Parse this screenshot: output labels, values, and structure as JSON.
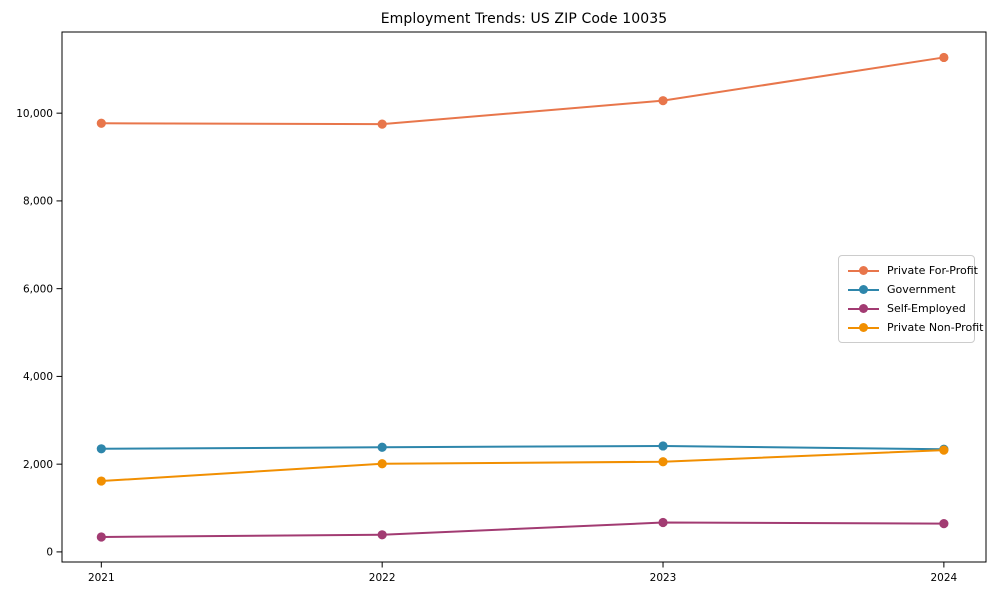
{
  "figure": {
    "background": "#ffffff",
    "spine_color": "#000000",
    "text_color": "#000000"
  },
  "chart_data": {
    "type": "line",
    "title": "Employment Trends: US ZIP Code 10035",
    "xlabel": "",
    "ylabel": "",
    "grid": false,
    "x_tick_labels": [
      "2021",
      "2022",
      "2023",
      "2024"
    ],
    "x_numeric": [
      2021,
      2022,
      2023,
      2024
    ],
    "y_tick_labels": [
      "0",
      "2,000",
      "4,000",
      "6,000",
      "8,000",
      "10,000"
    ],
    "yticks": [
      0,
      2000,
      4000,
      6000,
      8000,
      10000
    ],
    "ylim": [
      -230,
      11850
    ],
    "xlim": [
      2020.86,
      2024.15
    ],
    "series": [
      {
        "name": "Private For-Profit",
        "color": "#E8764B",
        "values": [
          9770,
          9750,
          10285,
          11270
        ]
      },
      {
        "name": "Government",
        "color": "#2E86AB",
        "values": [
          2350,
          2385,
          2415,
          2340
        ]
      },
      {
        "name": "Self-Employed",
        "color": "#A23B72",
        "values": [
          340,
          390,
          670,
          645
        ]
      },
      {
        "name": "Private Non-Profit",
        "color": "#F18F01",
        "values": [
          1615,
          2010,
          2055,
          2320
        ]
      }
    ],
    "legend": {
      "position": "center-right",
      "border_color": "#cccccc",
      "background": "#ffffff"
    }
  }
}
